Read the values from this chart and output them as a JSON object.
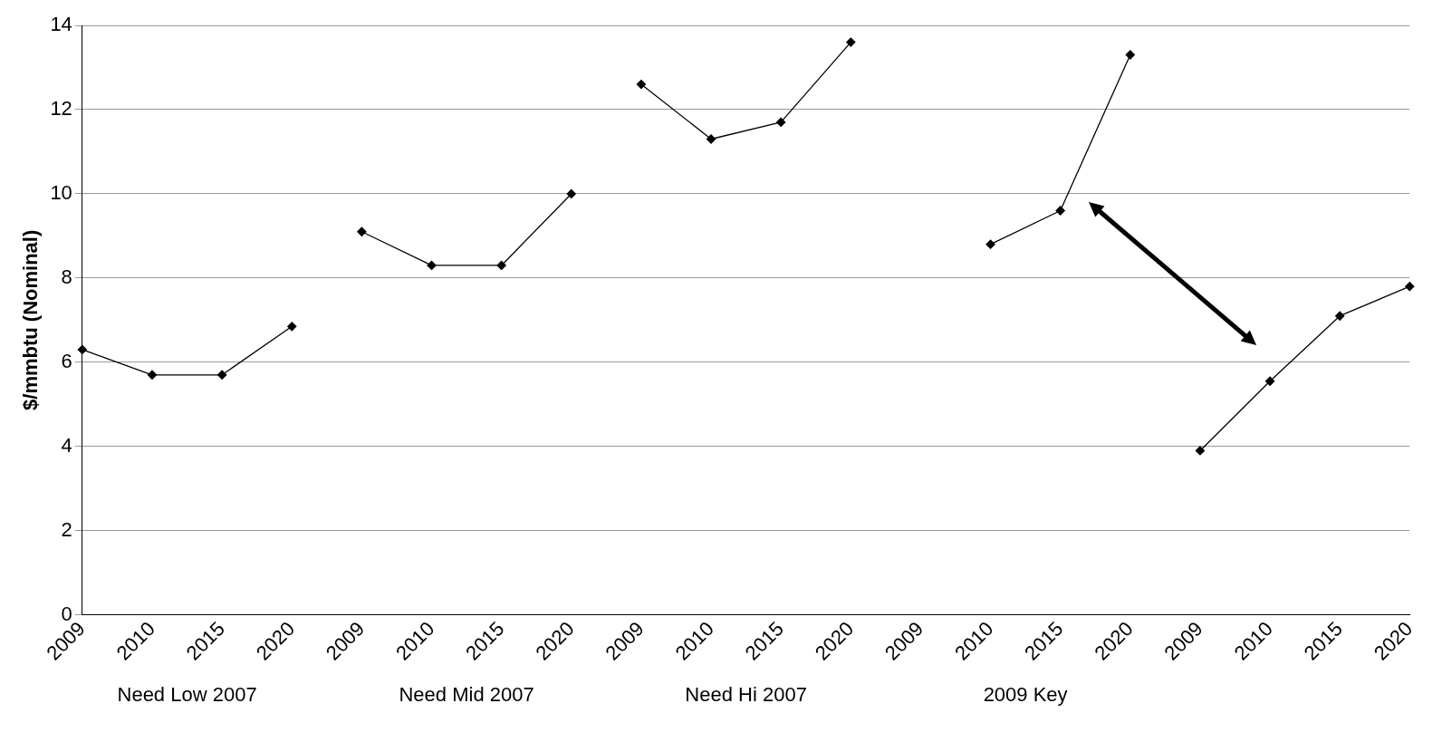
{
  "chart_data": {
    "type": "line",
    "ylabel": "$/mmbtu (Nominal)",
    "categories": [
      "2009",
      "2010",
      "2015",
      "2020",
      "2009",
      "2010",
      "2015",
      "2020",
      "2009",
      "2010",
      "2015",
      "2020",
      "2009",
      "2010",
      "2015",
      "2020",
      "2009",
      "2010",
      "2015",
      "2020"
    ],
    "series": [
      {
        "color": "#000000",
        "values": [
          6.3,
          5.7,
          5.7,
          6.85,
          null,
          null,
          null,
          null,
          null,
          null,
          null,
          null,
          null,
          null,
          null,
          null,
          null,
          null,
          null,
          null
        ]
      },
      {
        "color": "#000000",
        "values": [
          null,
          null,
          null,
          null,
          9.1,
          8.3,
          8.3,
          10.0,
          null,
          null,
          null,
          null,
          null,
          null,
          null,
          null,
          null,
          null,
          null,
          null
        ]
      },
      {
        "color": "#000000",
        "values": [
          null,
          null,
          null,
          null,
          null,
          null,
          null,
          null,
          12.6,
          11.3,
          11.7,
          13.6,
          null,
          null,
          null,
          null,
          null,
          null,
          null,
          null
        ]
      },
      {
        "color": "#000000",
        "values": [
          null,
          null,
          null,
          null,
          null,
          null,
          null,
          null,
          null,
          null,
          null,
          null,
          null,
          8.8,
          9.6,
          13.3,
          null,
          null,
          null,
          null
        ]
      },
      {
        "color": "#000000",
        "values": [
          null,
          null,
          null,
          null,
          null,
          null,
          null,
          null,
          null,
          null,
          null,
          null,
          null,
          null,
          null,
          null,
          3.9,
          5.55,
          7.1,
          7.8
        ]
      }
    ],
    "annotations": [
      "Need Low 2007",
      "Need Mid 2007",
      "Need Hi 2007",
      "2009 Key"
    ],
    "ylim": [
      0,
      14
    ],
    "yticks": [
      0,
      2,
      4,
      6,
      8,
      10,
      12,
      14
    ],
    "grid": "y",
    "marker": "diamond",
    "line_style": "solid",
    "legend": false
  }
}
